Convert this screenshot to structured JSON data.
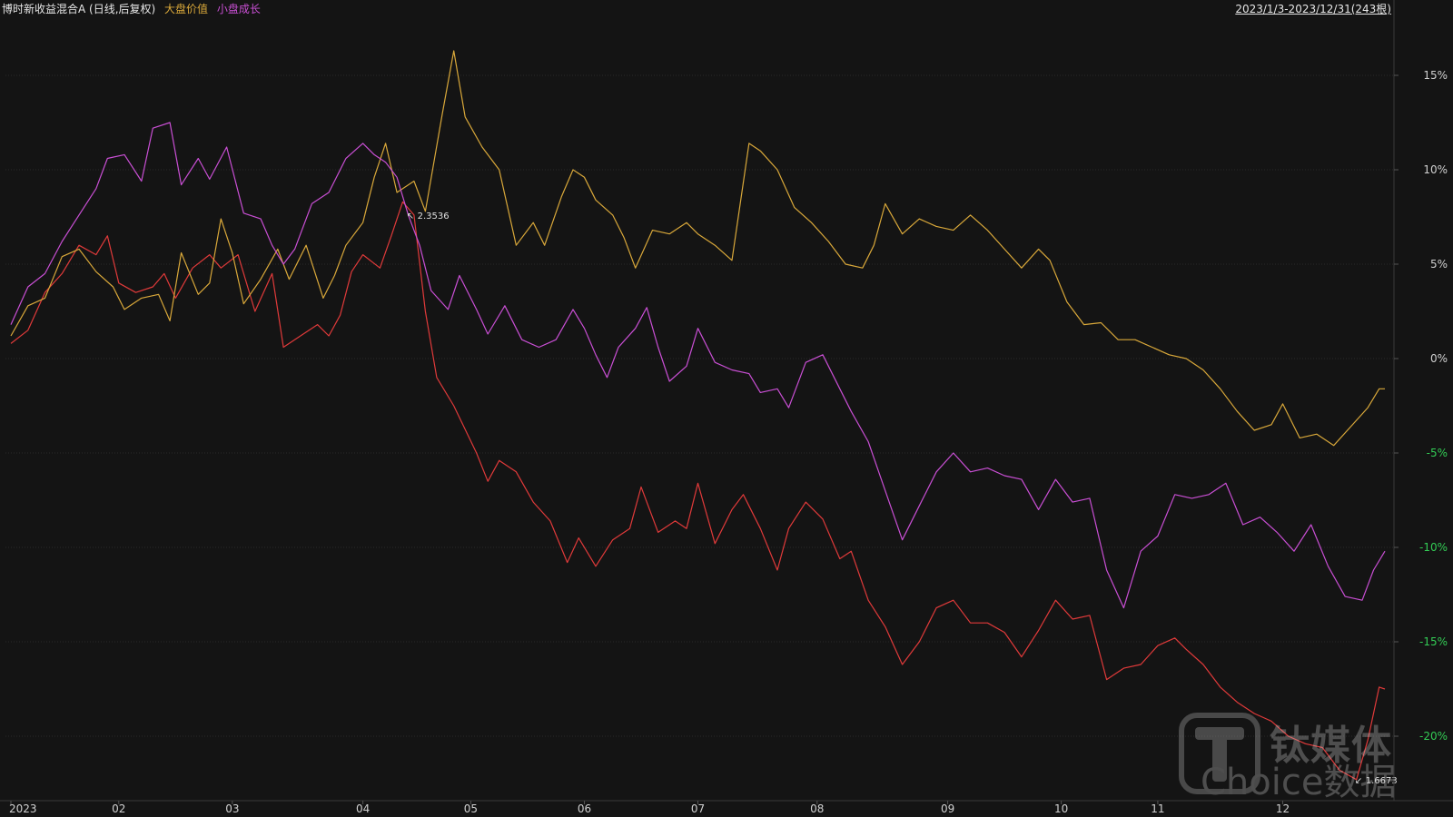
{
  "header": {
    "title": "博时新收益混合A (日线,后复权)",
    "legend": [
      {
        "label": "大盘价值",
        "color": "#d9a83a"
      },
      {
        "label": "小盘成长",
        "color": "#c94fd4"
      }
    ],
    "range": "2023/1/3-2023/12/31(243根)"
  },
  "watermark": {
    "brand_cn": "钛媒体",
    "brand_en": "Choice数据"
  },
  "chart_data": {
    "type": "line",
    "y_unit": "%",
    "ylim": [
      -22,
      17
    ],
    "y_ticks": [
      {
        "value": 15,
        "label": "15%",
        "color": "#d0d0d0"
      },
      {
        "value": 10,
        "label": "10%",
        "color": "#d0d0d0"
      },
      {
        "value": 5,
        "label": "5%",
        "color": "#d0d0d0"
      },
      {
        "value": 0,
        "label": "0%",
        "color": "#d0d0d0"
      },
      {
        "value": -5,
        "label": "-5%",
        "color": "#33cc55"
      },
      {
        "value": -10,
        "label": "-10%",
        "color": "#33cc55"
      },
      {
        "value": -15,
        "label": "-15%",
        "color": "#33cc55"
      },
      {
        "value": -20,
        "label": "-20%",
        "color": "#33cc55"
      }
    ],
    "x_count": 243,
    "x_ticks": [
      {
        "index": 0,
        "label": "2023"
      },
      {
        "index": 19,
        "label": "02"
      },
      {
        "index": 39,
        "label": "03"
      },
      {
        "index": 62,
        "label": "04"
      },
      {
        "index": 81,
        "label": "05"
      },
      {
        "index": 101,
        "label": "06"
      },
      {
        "index": 121,
        "label": "07"
      },
      {
        "index": 142,
        "label": "08"
      },
      {
        "index": 165,
        "label": "09"
      },
      {
        "index": 185,
        "label": "10"
      },
      {
        "index": 202,
        "label": "11"
      },
      {
        "index": 224,
        "label": "12"
      }
    ],
    "annotations": [
      {
        "index": 70,
        "value": 7.6,
        "label": "2.3536"
      },
      {
        "index": 237,
        "value": -22.3,
        "label": "1.6673"
      }
    ],
    "series": [
      {
        "name": "博时新收益混合A",
        "color": "#e03a3a",
        "points": [
          [
            0,
            0.8
          ],
          [
            3,
            1.5
          ],
          [
            6,
            3.5
          ],
          [
            9,
            4.5
          ],
          [
            12,
            6.0
          ],
          [
            15,
            5.5
          ],
          [
            17,
            6.5
          ],
          [
            19,
            4.0
          ],
          [
            22,
            3.5
          ],
          [
            25,
            3.8
          ],
          [
            27,
            4.5
          ],
          [
            29,
            3.2
          ],
          [
            32,
            4.8
          ],
          [
            35,
            5.5
          ],
          [
            37,
            4.8
          ],
          [
            40,
            5.5
          ],
          [
            43,
            2.5
          ],
          [
            46,
            4.5
          ],
          [
            48,
            0.6
          ],
          [
            51,
            1.2
          ],
          [
            54,
            1.8
          ],
          [
            56,
            1.2
          ],
          [
            58,
            2.3
          ],
          [
            60,
            4.6
          ],
          [
            62,
            5.5
          ],
          [
            65,
            4.8
          ],
          [
            67,
            6.5
          ],
          [
            69,
            8.3
          ],
          [
            71,
            7.6
          ],
          [
            73,
            2.5
          ],
          [
            75,
            -1.0
          ],
          [
            78,
            -2.5
          ],
          [
            82,
            -5.0
          ],
          [
            84,
            -6.5
          ],
          [
            86,
            -5.4
          ],
          [
            89,
            -6.0
          ],
          [
            92,
            -7.6
          ],
          [
            95,
            -8.6
          ],
          [
            98,
            -10.8
          ],
          [
            100,
            -9.5
          ],
          [
            103,
            -11.0
          ],
          [
            106,
            -9.6
          ],
          [
            109,
            -9.0
          ],
          [
            111,
            -6.8
          ],
          [
            114,
            -9.2
          ],
          [
            117,
            -8.6
          ],
          [
            119,
            -9.0
          ],
          [
            121,
            -6.6
          ],
          [
            124,
            -9.8
          ],
          [
            127,
            -8.0
          ],
          [
            129,
            -7.2
          ],
          [
            132,
            -9.0
          ],
          [
            135,
            -11.2
          ],
          [
            137,
            -9.0
          ],
          [
            140,
            -7.6
          ],
          [
            143,
            -8.5
          ],
          [
            146,
            -10.6
          ],
          [
            148,
            -10.2
          ],
          [
            151,
            -12.8
          ],
          [
            154,
            -14.2
          ],
          [
            157,
            -16.2
          ],
          [
            160,
            -15.0
          ],
          [
            163,
            -13.2
          ],
          [
            166,
            -12.8
          ],
          [
            169,
            -14.0
          ],
          [
            172,
            -14.0
          ],
          [
            175,
            -14.5
          ],
          [
            178,
            -15.8
          ],
          [
            181,
            -14.4
          ],
          [
            184,
            -12.8
          ],
          [
            187,
            -13.8
          ],
          [
            190,
            -13.6
          ],
          [
            193,
            -17.0
          ],
          [
            196,
            -16.4
          ],
          [
            199,
            -16.2
          ],
          [
            202,
            -15.2
          ],
          [
            205,
            -14.8
          ],
          [
            207,
            -15.4
          ],
          [
            210,
            -16.2
          ],
          [
            213,
            -17.4
          ],
          [
            216,
            -18.2
          ],
          [
            219,
            -18.8
          ],
          [
            222,
            -19.2
          ],
          [
            225,
            -20.0
          ],
          [
            228,
            -20.4
          ],
          [
            231,
            -20.6
          ],
          [
            234,
            -21.8
          ],
          [
            237,
            -22.3
          ],
          [
            239,
            -20.2
          ],
          [
            241,
            -17.4
          ],
          [
            242,
            -17.5
          ]
        ]
      },
      {
        "name": "大盘价值",
        "color": "#d9a83a",
        "points": [
          [
            0,
            1.2
          ],
          [
            3,
            2.8
          ],
          [
            6,
            3.2
          ],
          [
            9,
            5.4
          ],
          [
            12,
            5.8
          ],
          [
            15,
            4.6
          ],
          [
            18,
            3.8
          ],
          [
            20,
            2.6
          ],
          [
            23,
            3.2
          ],
          [
            26,
            3.4
          ],
          [
            28,
            2.0
          ],
          [
            30,
            5.6
          ],
          [
            33,
            3.4
          ],
          [
            35,
            4.0
          ],
          [
            37,
            7.4
          ],
          [
            39,
            5.6
          ],
          [
            41,
            2.9
          ],
          [
            44,
            4.2
          ],
          [
            47,
            5.8
          ],
          [
            49,
            4.2
          ],
          [
            52,
            6.0
          ],
          [
            55,
            3.2
          ],
          [
            57,
            4.4
          ],
          [
            59,
            6.0
          ],
          [
            62,
            7.2
          ],
          [
            64,
            9.6
          ],
          [
            66,
            11.4
          ],
          [
            68,
            8.8
          ],
          [
            71,
            9.4
          ],
          [
            73,
            7.8
          ],
          [
            76,
            13.0
          ],
          [
            78,
            16.3
          ],
          [
            80,
            12.8
          ],
          [
            83,
            11.2
          ],
          [
            86,
            10.0
          ],
          [
            89,
            6.0
          ],
          [
            92,
            7.2
          ],
          [
            94,
            6.0
          ],
          [
            97,
            8.6
          ],
          [
            99,
            10.0
          ],
          [
            101,
            9.6
          ],
          [
            103,
            8.4
          ],
          [
            106,
            7.6
          ],
          [
            108,
            6.4
          ],
          [
            110,
            4.8
          ],
          [
            113,
            6.8
          ],
          [
            116,
            6.6
          ],
          [
            119,
            7.2
          ],
          [
            121,
            6.6
          ],
          [
            124,
            6.0
          ],
          [
            127,
            5.2
          ],
          [
            130,
            11.4
          ],
          [
            132,
            11.0
          ],
          [
            135,
            10.0
          ],
          [
            138,
            8.0
          ],
          [
            141,
            7.2
          ],
          [
            144,
            6.2
          ],
          [
            147,
            5.0
          ],
          [
            150,
            4.8
          ],
          [
            152,
            6.0
          ],
          [
            154,
            8.2
          ],
          [
            157,
            6.6
          ],
          [
            160,
            7.4
          ],
          [
            163,
            7.0
          ],
          [
            166,
            6.8
          ],
          [
            169,
            7.6
          ],
          [
            172,
            6.8
          ],
          [
            175,
            5.8
          ],
          [
            178,
            4.8
          ],
          [
            181,
            5.8
          ],
          [
            183,
            5.2
          ],
          [
            186,
            3.0
          ],
          [
            189,
            1.8
          ],
          [
            192,
            1.9
          ],
          [
            195,
            1.0
          ],
          [
            198,
            1.0
          ],
          [
            201,
            0.6
          ],
          [
            204,
            0.2
          ],
          [
            207,
            0.0
          ],
          [
            210,
            -0.6
          ],
          [
            213,
            -1.6
          ],
          [
            216,
            -2.8
          ],
          [
            219,
            -3.8
          ],
          [
            222,
            -3.5
          ],
          [
            224,
            -2.4
          ],
          [
            227,
            -4.2
          ],
          [
            230,
            -4.0
          ],
          [
            233,
            -4.6
          ],
          [
            236,
            -3.6
          ],
          [
            239,
            -2.6
          ],
          [
            241,
            -1.6
          ],
          [
            242,
            -1.6
          ]
        ]
      },
      {
        "name": "小盘成长",
        "color": "#c94fd4",
        "points": [
          [
            0,
            1.8
          ],
          [
            3,
            3.8
          ],
          [
            6,
            4.5
          ],
          [
            9,
            6.2
          ],
          [
            12,
            7.6
          ],
          [
            15,
            9.0
          ],
          [
            17,
            10.6
          ],
          [
            20,
            10.8
          ],
          [
            23,
            9.4
          ],
          [
            25,
            12.2
          ],
          [
            28,
            12.5
          ],
          [
            30,
            9.2
          ],
          [
            33,
            10.6
          ],
          [
            35,
            9.5
          ],
          [
            38,
            11.2
          ],
          [
            41,
            7.7
          ],
          [
            44,
            7.4
          ],
          [
            46,
            6.0
          ],
          [
            48,
            5.0
          ],
          [
            50,
            5.8
          ],
          [
            53,
            8.2
          ],
          [
            56,
            8.8
          ],
          [
            59,
            10.6
          ],
          [
            62,
            11.4
          ],
          [
            64,
            10.8
          ],
          [
            66,
            10.4
          ],
          [
            68,
            9.6
          ],
          [
            70,
            7.6
          ],
          [
            72,
            6.0
          ],
          [
            74,
            3.6
          ],
          [
            77,
            2.6
          ],
          [
            79,
            4.4
          ],
          [
            82,
            2.6
          ],
          [
            84,
            1.3
          ],
          [
            87,
            2.8
          ],
          [
            90,
            1.0
          ],
          [
            93,
            0.6
          ],
          [
            96,
            1.0
          ],
          [
            99,
            2.6
          ],
          [
            101,
            1.6
          ],
          [
            103,
            0.2
          ],
          [
            105,
            -1.0
          ],
          [
            107,
            0.6
          ],
          [
            110,
            1.6
          ],
          [
            112,
            2.7
          ],
          [
            114,
            0.6
          ],
          [
            116,
            -1.2
          ],
          [
            119,
            -0.4
          ],
          [
            121,
            1.6
          ],
          [
            124,
            -0.2
          ],
          [
            127,
            -0.6
          ],
          [
            130,
            -0.8
          ],
          [
            132,
            -1.8
          ],
          [
            135,
            -1.6
          ],
          [
            137,
            -2.6
          ],
          [
            140,
            -0.2
          ],
          [
            143,
            0.2
          ],
          [
            146,
            -1.6
          ],
          [
            148,
            -2.8
          ],
          [
            151,
            -4.4
          ],
          [
            154,
            -7.0
          ],
          [
            157,
            -9.6
          ],
          [
            160,
            -7.8
          ],
          [
            163,
            -6.0
          ],
          [
            166,
            -5.0
          ],
          [
            169,
            -6.0
          ],
          [
            172,
            -5.8
          ],
          [
            175,
            -6.2
          ],
          [
            178,
            -6.4
          ],
          [
            181,
            -8.0
          ],
          [
            184,
            -6.4
          ],
          [
            187,
            -7.6
          ],
          [
            190,
            -7.4
          ],
          [
            193,
            -11.2
          ],
          [
            196,
            -13.2
          ],
          [
            199,
            -10.2
          ],
          [
            202,
            -9.4
          ],
          [
            205,
            -7.2
          ],
          [
            208,
            -7.4
          ],
          [
            211,
            -7.2
          ],
          [
            214,
            -6.6
          ],
          [
            217,
            -8.8
          ],
          [
            220,
            -8.4
          ],
          [
            223,
            -9.2
          ],
          [
            226,
            -10.2
          ],
          [
            229,
            -8.8
          ],
          [
            232,
            -11.0
          ],
          [
            235,
            -12.6
          ],
          [
            238,
            -12.8
          ],
          [
            240,
            -11.2
          ],
          [
            242,
            -10.2
          ]
        ]
      }
    ]
  }
}
